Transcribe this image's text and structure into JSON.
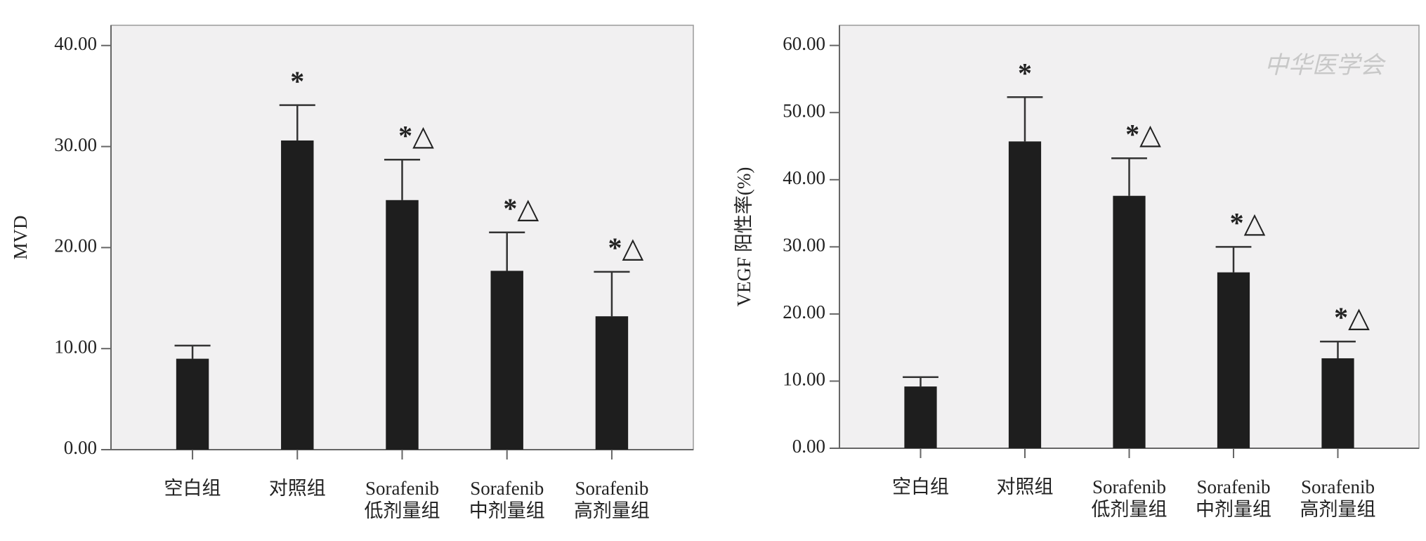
{
  "chart_data": [
    {
      "type": "bar",
      "ylabel": "MVD",
      "categories": [
        "空白组",
        "对照组",
        "Sorafenib\n低剂量组",
        "Sorafenib\n中剂量组",
        "Sorafenib\n高剂量组"
      ],
      "values": [
        9.0,
        30.6,
        24.7,
        17.7,
        13.2
      ],
      "errors": [
        1.3,
        3.5,
        4.0,
        3.8,
        4.4
      ],
      "annotations": [
        null,
        "*",
        "*△",
        "*△",
        "*△"
      ],
      "color": "#1e1e1e",
      "ylim": [
        0,
        42
      ],
      "yticks": [
        {
          "value": 0,
          "label": "0.00"
        },
        {
          "value": 10,
          "label": "10.00"
        },
        {
          "value": 20,
          "label": "20.00"
        },
        {
          "value": 30,
          "label": "30.00"
        },
        {
          "value": 40,
          "label": "40.00"
        }
      ],
      "grid": false
    },
    {
      "type": "bar",
      "ylabel": "VEGF 阳性率(%)",
      "watermark": "中华医学会",
      "categories": [
        "空白组",
        "对照组",
        "Sorafenib\n低剂量组",
        "Sorafenib\n中剂量组",
        "Sorafenib\n高剂量组"
      ],
      "values": [
        9.2,
        45.7,
        37.6,
        26.2,
        13.4
      ],
      "errors": [
        1.4,
        6.6,
        5.6,
        3.8,
        2.5
      ],
      "annotations": [
        null,
        "*",
        "*△",
        "*△",
        "*△"
      ],
      "color": "#1e1e1e",
      "ylim": [
        0,
        63
      ],
      "yticks": [
        {
          "value": 0,
          "label": "0.00"
        },
        {
          "value": 10,
          "label": "10.00"
        },
        {
          "value": 20,
          "label": "20.00"
        },
        {
          "value": 30,
          "label": "30.00"
        },
        {
          "value": 40,
          "label": "40.00"
        },
        {
          "value": 50,
          "label": "50.00"
        },
        {
          "value": 60,
          "label": "60.00"
        }
      ],
      "grid": false
    }
  ]
}
